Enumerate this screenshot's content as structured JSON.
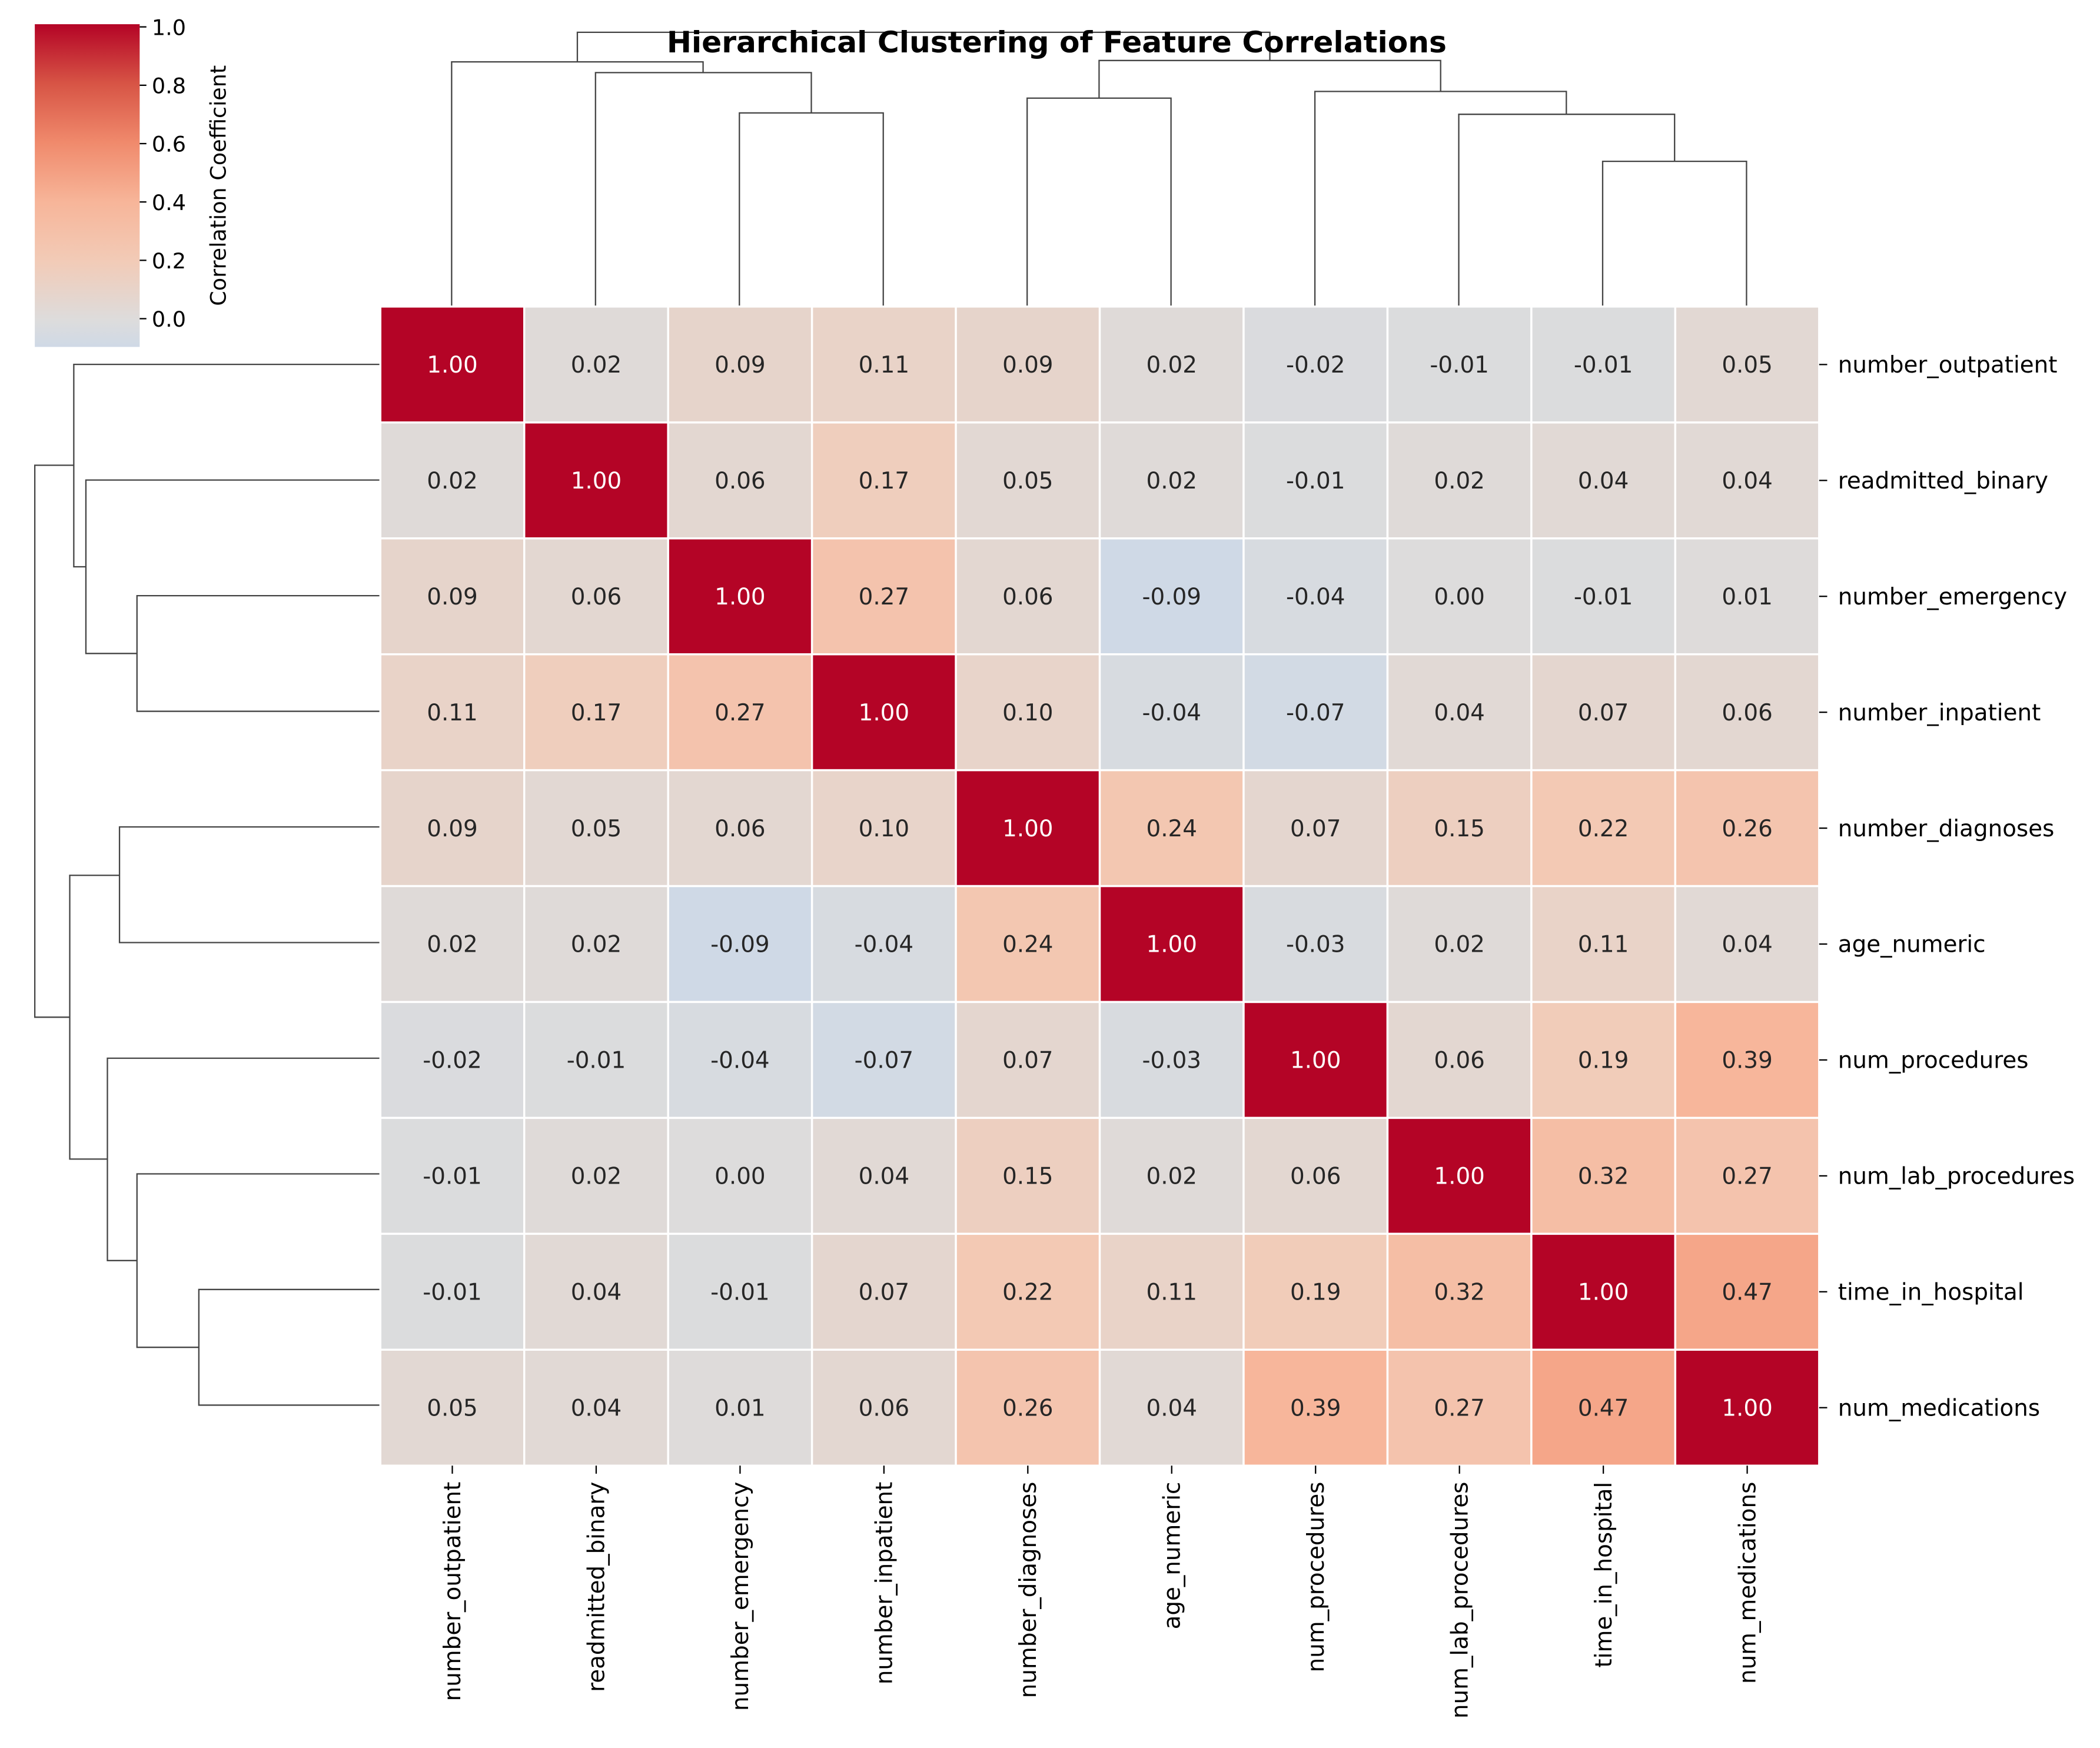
{
  "chart_data": {
    "type": "heatmap",
    "title": "Hierarchical Clustering of Feature Correlations",
    "colorbar": {
      "label": "Correlation Coefficient",
      "ticks": [
        "0.0",
        "0.2",
        "0.4",
        "0.6",
        "0.8",
        "1.0"
      ],
      "range": [
        -0.09,
        1.0
      ],
      "colormap": "coolwarm",
      "center": 0
    },
    "labels": [
      "number_outpatient",
      "readmitted_binary",
      "number_emergency",
      "number_inpatient",
      "number_diagnoses",
      "age_numeric",
      "num_procedures",
      "num_lab_procedures",
      "time_in_hospital",
      "num_medications"
    ],
    "values": [
      [
        1.0,
        0.02,
        0.09,
        0.11,
        0.09,
        0.02,
        -0.02,
        -0.01,
        -0.01,
        0.05
      ],
      [
        0.02,
        1.0,
        0.06,
        0.17,
        0.05,
        0.02,
        -0.01,
        0.02,
        0.04,
        0.04
      ],
      [
        0.09,
        0.06,
        1.0,
        0.27,
        0.06,
        -0.09,
        -0.04,
        -0.0,
        -0.01,
        0.01
      ],
      [
        0.11,
        0.17,
        0.27,
        1.0,
        0.1,
        -0.04,
        -0.07,
        0.04,
        0.07,
        0.06
      ],
      [
        0.09,
        0.05,
        0.06,
        0.1,
        1.0,
        0.24,
        0.07,
        0.15,
        0.22,
        0.26
      ],
      [
        0.02,
        0.02,
        -0.09,
        -0.04,
        0.24,
        1.0,
        -0.03,
        0.02,
        0.11,
        0.04
      ],
      [
        -0.02,
        -0.01,
        -0.04,
        -0.07,
        0.07,
        -0.03,
        1.0,
        0.06,
        0.19,
        0.39
      ],
      [
        -0.01,
        0.02,
        -0.0,
        0.04,
        0.15,
        0.02,
        0.06,
        1.0,
        0.32,
        0.27
      ],
      [
        -0.01,
        0.04,
        -0.01,
        0.07,
        0.22,
        0.11,
        0.19,
        0.32,
        1.0,
        0.47
      ],
      [
        0.05,
        0.04,
        0.01,
        0.06,
        0.26,
        0.04,
        0.39,
        0.27,
        0.47,
        1.0
      ]
    ],
    "dendrogram": "row and column dendrograms shown (same clustering order)"
  }
}
